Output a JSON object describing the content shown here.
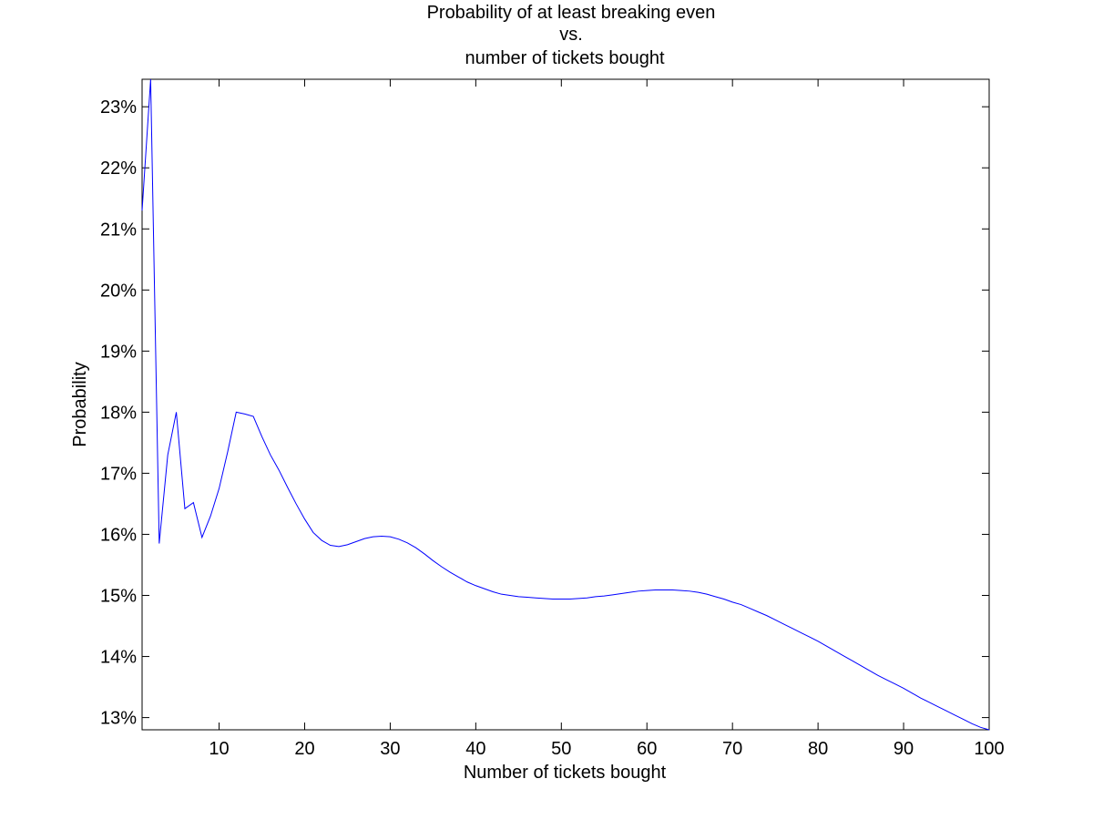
{
  "chart_data": {
    "type": "line",
    "title": [
      "Probability of at least breaking even",
      "vs.",
      "number of tickets bought"
    ],
    "xlabel": "Number of tickets bought",
    "ylabel": "Probability",
    "xlim": [
      1,
      100
    ],
    "ylim": [
      12.8,
      23.45
    ],
    "x_ticks": [
      10,
      20,
      30,
      40,
      50,
      60,
      70,
      80,
      90,
      100
    ],
    "x_tick_labels": [
      "10",
      "20",
      "30",
      "40",
      "50",
      "60",
      "70",
      "80",
      "90",
      "100"
    ],
    "y_ticks": [
      13,
      14,
      15,
      16,
      17,
      18,
      19,
      20,
      21,
      22,
      23
    ],
    "y_tick_labels": [
      "13%",
      "14%",
      "15%",
      "16%",
      "17%",
      "18%",
      "19%",
      "20%",
      "21%",
      "22%",
      "23%"
    ],
    "grid": false,
    "series": [
      {
        "name": "Probability of at least breaking even",
        "color": "#0000ff",
        "x": [
          1,
          2,
          3,
          4,
          5,
          6,
          7,
          8,
          9,
          10,
          11,
          12,
          13,
          14,
          15,
          16,
          17,
          18,
          19,
          20,
          21,
          22,
          23,
          24,
          25,
          26,
          27,
          28,
          29,
          30,
          31,
          32,
          33,
          34,
          35,
          36,
          37,
          38,
          39,
          40,
          41,
          42,
          43,
          44,
          45,
          46,
          47,
          48,
          49,
          50,
          51,
          52,
          53,
          54,
          55,
          56,
          57,
          58,
          59,
          60,
          61,
          62,
          63,
          64,
          65,
          66,
          67,
          68,
          69,
          70,
          71,
          72,
          73,
          74,
          75,
          76,
          77,
          78,
          79,
          80,
          81,
          82,
          83,
          84,
          85,
          86,
          87,
          88,
          89,
          90,
          91,
          92,
          93,
          94,
          95,
          96,
          97,
          98,
          99,
          100
        ],
        "values": [
          21.3,
          23.45,
          15.85,
          17.3,
          18.0,
          16.42,
          16.52,
          15.95,
          16.3,
          16.75,
          17.35,
          18.0,
          17.97,
          17.93,
          17.6,
          17.3,
          17.05,
          16.77,
          16.5,
          16.25,
          16.03,
          15.9,
          15.82,
          15.8,
          15.83,
          15.88,
          15.93,
          15.96,
          15.97,
          15.96,
          15.92,
          15.86,
          15.78,
          15.68,
          15.57,
          15.47,
          15.38,
          15.3,
          15.22,
          15.16,
          15.11,
          15.06,
          15.02,
          15.0,
          14.98,
          14.97,
          14.96,
          14.95,
          14.94,
          14.94,
          14.94,
          14.95,
          14.96,
          14.98,
          14.99,
          15.01,
          15.03,
          15.05,
          15.07,
          15.08,
          15.09,
          15.09,
          15.09,
          15.08,
          15.07,
          15.05,
          15.02,
          14.98,
          14.94,
          14.89,
          14.85,
          14.79,
          14.73,
          14.67,
          14.6,
          14.53,
          14.46,
          14.39,
          14.32,
          14.25,
          14.17,
          14.09,
          14.01,
          13.93,
          13.85,
          13.77,
          13.69,
          13.62,
          13.55,
          13.48,
          13.4,
          13.32,
          13.25,
          13.18,
          13.11,
          13.04,
          12.97,
          12.9,
          12.84,
          12.8
        ]
      }
    ]
  }
}
